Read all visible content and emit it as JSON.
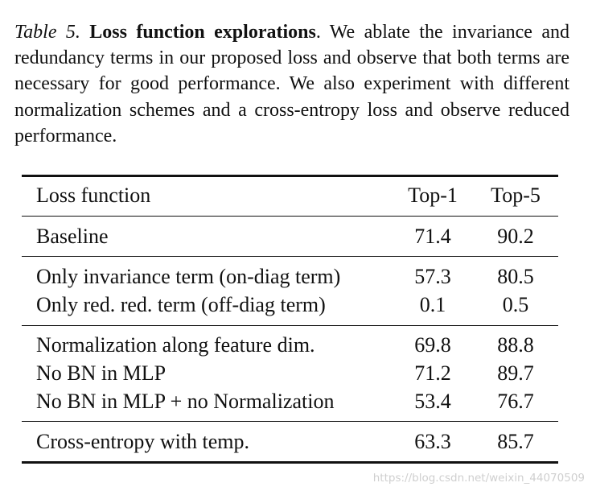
{
  "caption": {
    "label": "Table 5.",
    "title": "Loss function explorations",
    "text": ".  We ablate the invariance and redundancy terms in our proposed loss and observe that both terms are necessary for good performance. We also experiment with different normalization schemes and a cross-entropy loss and observe reduced performance."
  },
  "table": {
    "headers": [
      "Loss function",
      "Top-1",
      "Top-5"
    ],
    "groups": [
      [
        {
          "name": "Baseline",
          "top1": "71.4",
          "top5": "90.2"
        }
      ],
      [
        {
          "name": "Only invariance term (on-diag term)",
          "top1": "57.3",
          "top5": "80.5"
        },
        {
          "name": "Only red. red. term (off-diag term)",
          "top1": "0.1",
          "top5": "0.5"
        }
      ],
      [
        {
          "name": "Normalization along feature dim.",
          "top1": "69.8",
          "top5": "88.8"
        },
        {
          "name": "No BN in MLP",
          "top1": "71.2",
          "top5": "89.7"
        },
        {
          "name": "No BN in MLP + no Normalization",
          "top1": "53.4",
          "top5": "76.7"
        }
      ],
      [
        {
          "name": "Cross-entropy with temp.",
          "top1": "63.3",
          "top5": "85.7"
        }
      ]
    ]
  },
  "watermark": "https://blog.csdn.net/weixin_44070509"
}
